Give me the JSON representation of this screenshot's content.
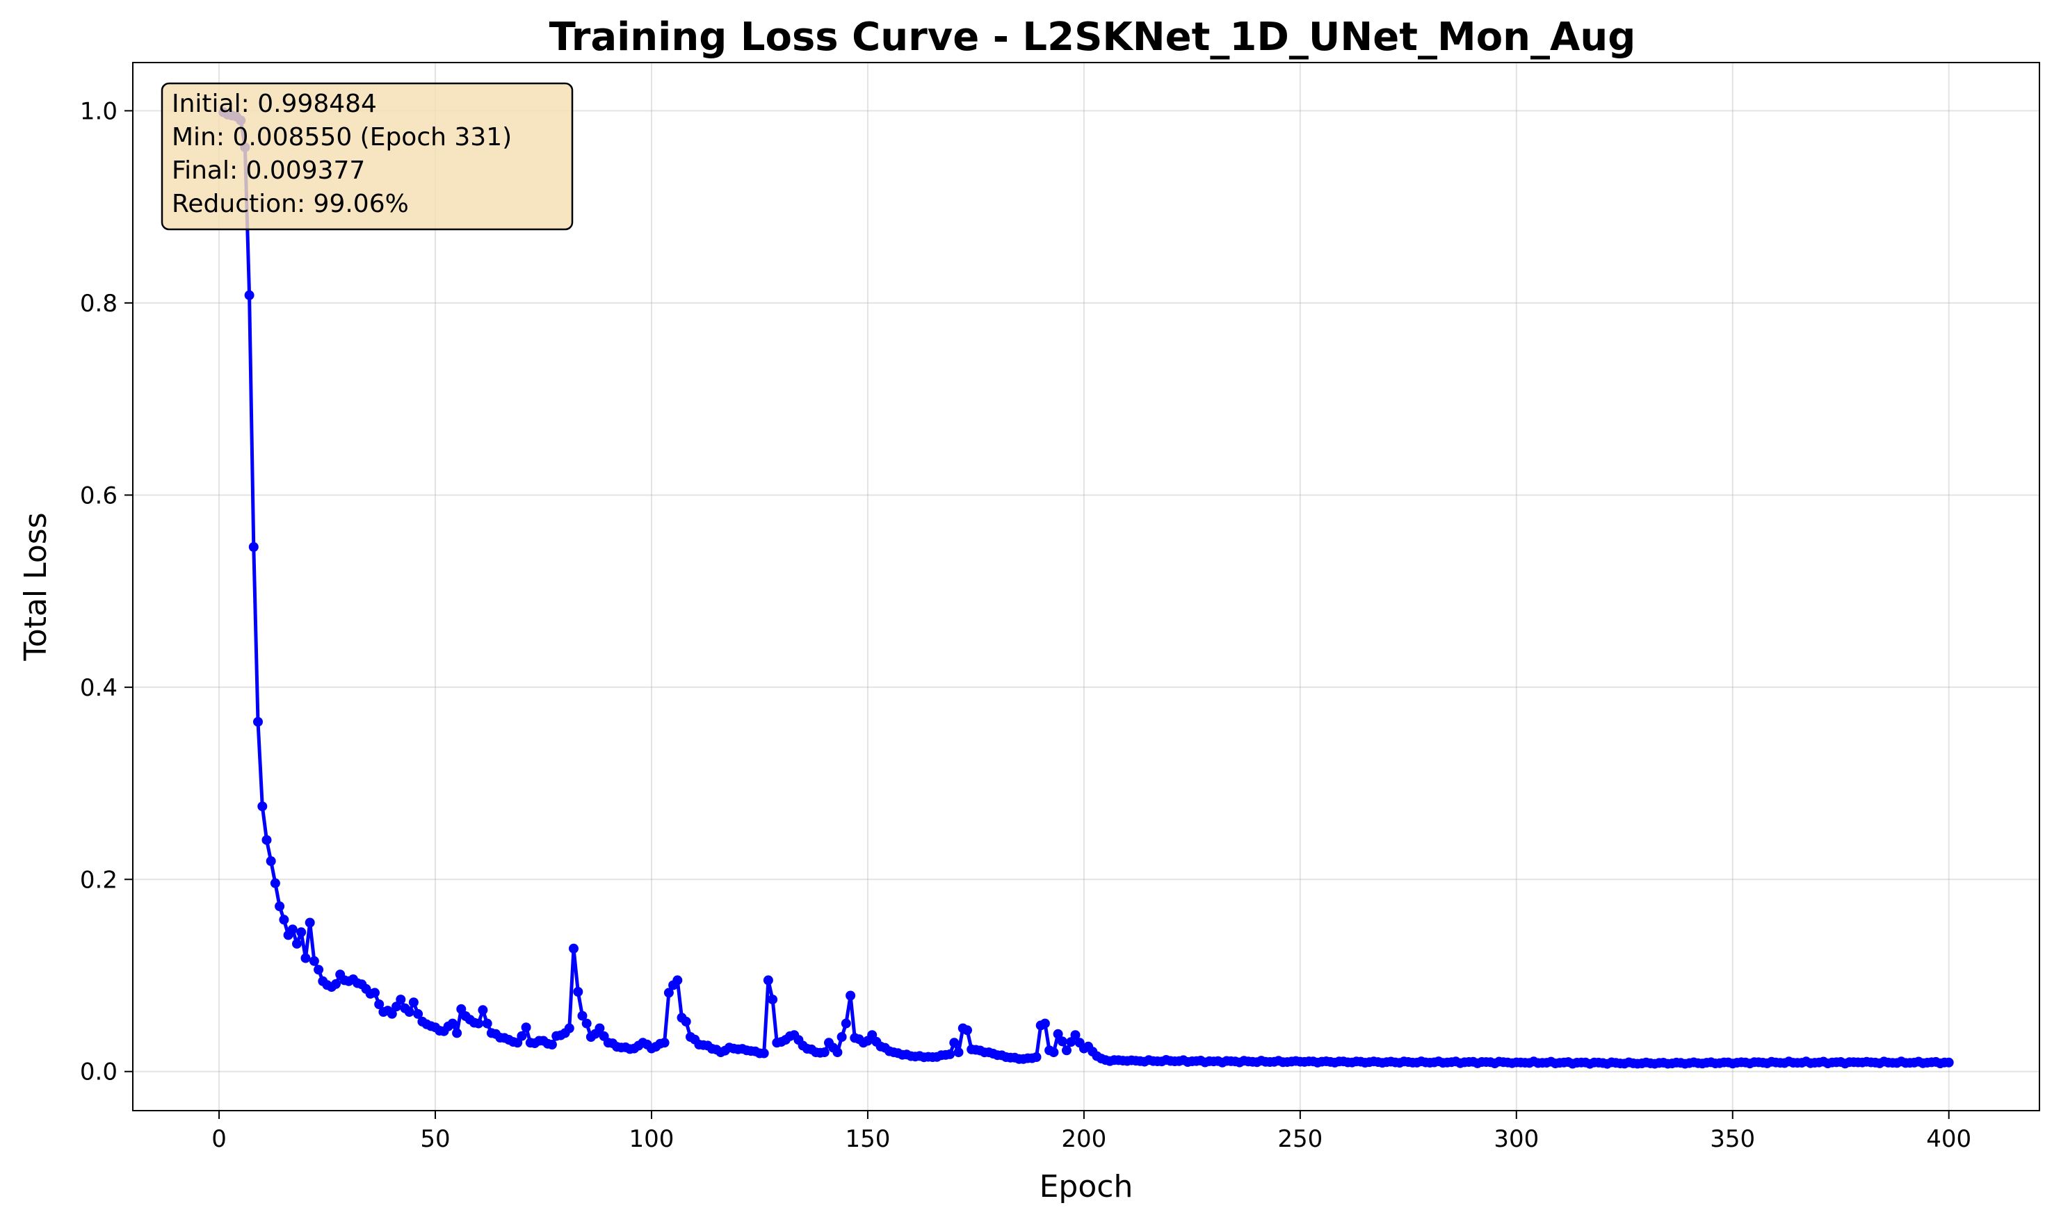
{
  "chart_data": {
    "type": "line",
    "title": "Training Loss Curve - L2SKNet_1D_UNet_Mon_Aug",
    "xlabel": "Epoch",
    "ylabel": "Total Loss",
    "xlim": [
      -19.95,
      420.95
    ],
    "ylim": [
      -0.0407,
      1.0502
    ],
    "x_ticks": [
      0,
      50,
      100,
      150,
      200,
      250,
      300,
      350,
      400
    ],
    "y_ticks": [
      0.0,
      0.2,
      0.4,
      0.6,
      0.8,
      1.0
    ],
    "x_tick_labels": [
      "0",
      "50",
      "100",
      "150",
      "200",
      "250",
      "300",
      "350",
      "400"
    ],
    "y_tick_labels": [
      "0.0",
      "0.2",
      "0.4",
      "0.6",
      "0.8",
      "1.0"
    ],
    "grid": true,
    "series": [
      {
        "name": "",
        "color": "#0000ff",
        "marker": "circle",
        "key_points": [
          [
            1,
            0.998484
          ],
          [
            2,
            0.996
          ],
          [
            3,
            0.995
          ],
          [
            4,
            0.994
          ],
          [
            5,
            0.99
          ],
          [
            6,
            0.962
          ],
          [
            7,
            0.808
          ],
          [
            8,
            0.546
          ],
          [
            9,
            0.364
          ],
          [
            10,
            0.276
          ],
          [
            11,
            0.241
          ],
          [
            12,
            0.219
          ],
          [
            13,
            0.196
          ],
          [
            14,
            0.172
          ],
          [
            15,
            0.158
          ],
          [
            16,
            0.142
          ],
          [
            17,
            0.148
          ],
          [
            18,
            0.133
          ],
          [
            19,
            0.145
          ],
          [
            20,
            0.118
          ],
          [
            21,
            0.155
          ],
          [
            22,
            0.115
          ],
          [
            23,
            0.106
          ],
          [
            24,
            0.094
          ],
          [
            25,
            0.09
          ],
          [
            26,
            0.088
          ],
          [
            27,
            0.091
          ],
          [
            28,
            0.101
          ],
          [
            29,
            0.095
          ],
          [
            30,
            0.094
          ],
          [
            32,
            0.092
          ],
          [
            34,
            0.086
          ],
          [
            36,
            0.082
          ],
          [
            37,
            0.07
          ],
          [
            38,
            0.062
          ],
          [
            40,
            0.06
          ],
          [
            42,
            0.075
          ],
          [
            44,
            0.062
          ],
          [
            45,
            0.072
          ],
          [
            47,
            0.052
          ],
          [
            50,
            0.046
          ],
          [
            52,
            0.042
          ],
          [
            54,
            0.05
          ],
          [
            55,
            0.04
          ],
          [
            56,
            0.065
          ],
          [
            58,
            0.054
          ],
          [
            60,
            0.05
          ],
          [
            61,
            0.064
          ],
          [
            63,
            0.04
          ],
          [
            66,
            0.035
          ],
          [
            69,
            0.03
          ],
          [
            71,
            0.046
          ],
          [
            72,
            0.03
          ],
          [
            75,
            0.032
          ],
          [
            77,
            0.028
          ],
          [
            78,
            0.037
          ],
          [
            80,
            0.04
          ],
          [
            81,
            0.045
          ],
          [
            82,
            0.128
          ],
          [
            83,
            0.083
          ],
          [
            84,
            0.058
          ],
          [
            85,
            0.05
          ],
          [
            86,
            0.036
          ],
          [
            88,
            0.045
          ],
          [
            90,
            0.03
          ],
          [
            93,
            0.025
          ],
          [
            96,
            0.024
          ],
          [
            98,
            0.03
          ],
          [
            100,
            0.024
          ],
          [
            103,
            0.03
          ],
          [
            104,
            0.082
          ],
          [
            106,
            0.095
          ],
          [
            107,
            0.056
          ],
          [
            108,
            0.052
          ],
          [
            109,
            0.036
          ],
          [
            111,
            0.028
          ],
          [
            113,
            0.027
          ],
          [
            116,
            0.02
          ],
          [
            118,
            0.025
          ],
          [
            122,
            0.022
          ],
          [
            126,
            0.019
          ],
          [
            127,
            0.095
          ],
          [
            128,
            0.075
          ],
          [
            129,
            0.03
          ],
          [
            131,
            0.033
          ],
          [
            133,
            0.038
          ],
          [
            135,
            0.027
          ],
          [
            138,
            0.02
          ],
          [
            140,
            0.02
          ],
          [
            141,
            0.03
          ],
          [
            143,
            0.02
          ],
          [
            144,
            0.036
          ],
          [
            145,
            0.05
          ],
          [
            146,
            0.079
          ],
          [
            147,
            0.035
          ],
          [
            149,
            0.03
          ],
          [
            150,
            0.032
          ],
          [
            151,
            0.038
          ],
          [
            153,
            0.026
          ],
          [
            156,
            0.02
          ],
          [
            160,
            0.016
          ],
          [
            165,
            0.015
          ],
          [
            169,
            0.018
          ],
          [
            170,
            0.03
          ],
          [
            171,
            0.02
          ],
          [
            172,
            0.045
          ],
          [
            173,
            0.043
          ],
          [
            174,
            0.023
          ],
          [
            178,
            0.02
          ],
          [
            182,
            0.015
          ],
          [
            186,
            0.013
          ],
          [
            189,
            0.015
          ],
          [
            190,
            0.048
          ],
          [
            191,
            0.05
          ],
          [
            192,
            0.022
          ],
          [
            193,
            0.02
          ],
          [
            194,
            0.039
          ],
          [
            196,
            0.022
          ],
          [
            198,
            0.038
          ],
          [
            200,
            0.024
          ],
          [
            201,
            0.026
          ],
          [
            203,
            0.016
          ],
          [
            205,
            0.012
          ],
          [
            210,
            0.011
          ],
          [
            220,
            0.011
          ],
          [
            230,
            0.0105
          ],
          [
            250,
            0.0102
          ],
          [
            270,
            0.0098
          ],
          [
            300,
            0.0095
          ],
          [
            331,
            0.00855
          ],
          [
            360,
            0.0094
          ],
          [
            380,
            0.0094
          ],
          [
            400,
            0.009377
          ]
        ]
      }
    ],
    "annotation": {
      "lines": [
        "Initial: 0.998484",
        "Min: 0.008550 (Epoch 331)",
        "Final: 0.009377",
        "Reduction: 99.06%"
      ],
      "placement": "top-left",
      "box_color": "#f5deb3"
    }
  }
}
